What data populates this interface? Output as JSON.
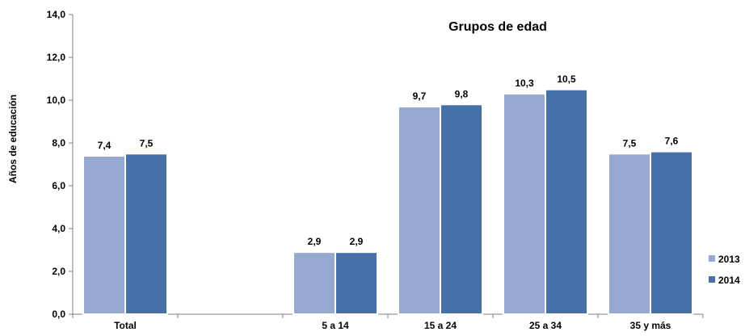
{
  "chart_data": {
    "type": "bar",
    "title": "Grupos de edad",
    "ylabel": "Años de educación",
    "xlabel": "",
    "categories": [
      "Total",
      "",
      "5 a 14",
      "15 a 24",
      "25 a 34",
      "35 y más"
    ],
    "series": [
      {
        "name": "2013",
        "values": [
          7.4,
          null,
          2.9,
          9.7,
          10.3,
          7.5
        ],
        "labels": [
          "7,4",
          "",
          "2,9",
          "9,7",
          "10,3",
          "7,5"
        ],
        "color": "#95a9d1"
      },
      {
        "name": "2014",
        "values": [
          7.5,
          null,
          2.9,
          9.8,
          10.5,
          7.6
        ],
        "labels": [
          "7,5",
          "",
          "2,9",
          "9,8",
          "10,5",
          "7,6"
        ],
        "color": "#4570a8"
      }
    ],
    "ylim": [
      0,
      14
    ],
    "yticks": [
      "0,0",
      "2,0",
      "4,0",
      "6,0",
      "8,0",
      "10,0",
      "12,0",
      "14,0"
    ],
    "grid": false,
    "legend_position": "bottom-right"
  }
}
